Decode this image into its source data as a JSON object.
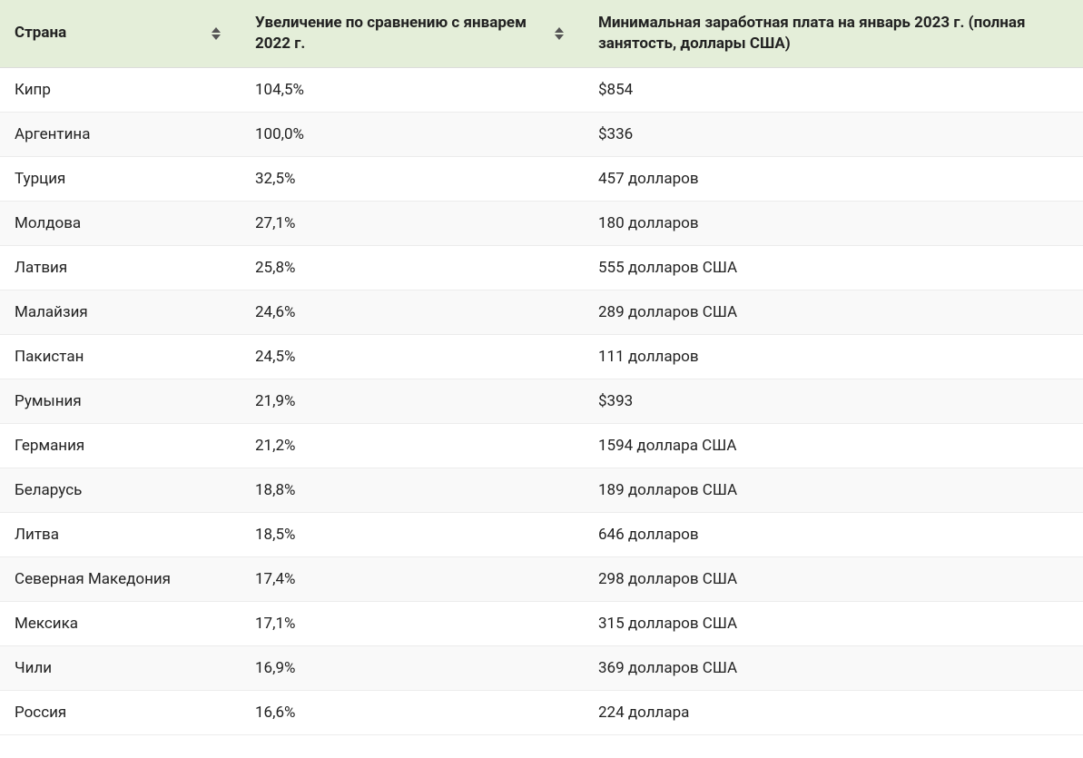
{
  "table": {
    "header_bg": "#e4eed9",
    "row_alt_bg": "#f9f9f9",
    "row_bg": "#ffffff",
    "border_color": "#ececec",
    "text_color": "#222222",
    "font_size_header": 17,
    "font_size_body": 17,
    "columns": [
      {
        "key": "country",
        "label": "Страна",
        "sortable": true
      },
      {
        "key": "increase",
        "label": "Увеличение по сравнению с январем 2022 г.",
        "sortable": true
      },
      {
        "key": "wage",
        "label": "Минимальная заработная плата на январь 2023 г. (полная занятость, доллары США)",
        "sortable": false
      }
    ],
    "rows": [
      {
        "country": "Кипр",
        "increase": "104,5%",
        "wage": "$854"
      },
      {
        "country": "Аргентина",
        "increase": "100,0%",
        "wage": "$336"
      },
      {
        "country": "Турция",
        "increase": "32,5%",
        "wage": "457 долларов"
      },
      {
        "country": "Молдова",
        "increase": "27,1%",
        "wage": "180 долларов"
      },
      {
        "country": "Латвия",
        "increase": "25,8%",
        "wage": "555 долларов США"
      },
      {
        "country": "Малайзия",
        "increase": "24,6%",
        "wage": "289 долларов США"
      },
      {
        "country": "Пакистан",
        "increase": "24,5%",
        "wage": "111 долларов"
      },
      {
        "country": "Румыния",
        "increase": "21,9%",
        "wage": "$393"
      },
      {
        "country": "Германия",
        "increase": "21,2%",
        "wage": "1594 доллара США"
      },
      {
        "country": "Беларусь",
        "increase": "18,8%",
        "wage": "189 долларов США"
      },
      {
        "country": "Литва",
        "increase": "18,5%",
        "wage": "646 долларов"
      },
      {
        "country": "Северная Македония",
        "increase": "17,4%",
        "wage": "298 долларов США"
      },
      {
        "country": "Мексика",
        "increase": "17,1%",
        "wage": "315 долларов США"
      },
      {
        "country": "Чили",
        "increase": "16,9%",
        "wage": "369 долларов США"
      },
      {
        "country": "Россия",
        "increase": "16,6%",
        "wage": "224 доллара"
      }
    ]
  }
}
